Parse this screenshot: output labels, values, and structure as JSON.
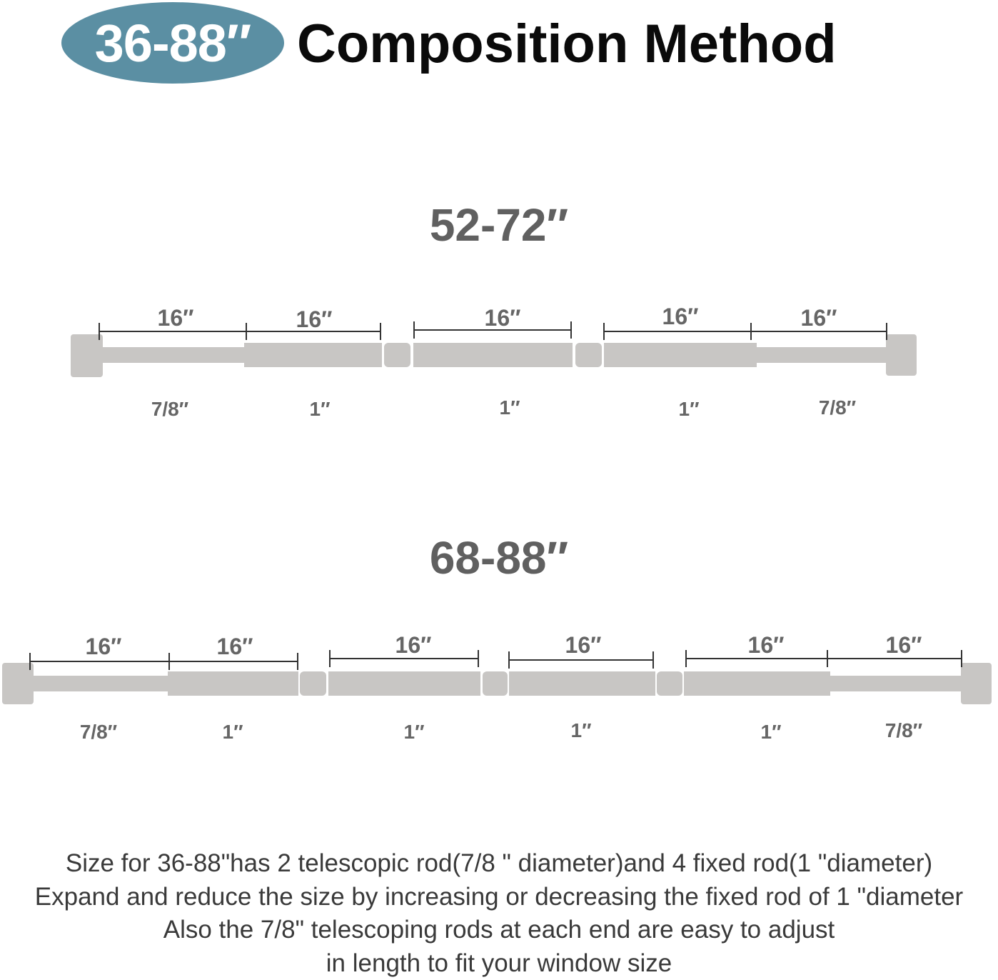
{
  "header": {
    "badge": "36-88″",
    "title": "Composition Method"
  },
  "diagram_1": {
    "label": "52-72″",
    "lengths": [
      "16″",
      "16″",
      "16″",
      "16″",
      "16″"
    ],
    "diameters": [
      "7/8″",
      "1″",
      "1″",
      "1″",
      "7/8″"
    ]
  },
  "diagram_2": {
    "label": "68-88″",
    "lengths": [
      "16″",
      "16″",
      "16″",
      "16″",
      "16″",
      "16″"
    ],
    "diameters": [
      "7/8″",
      "1″",
      "1″",
      "1″",
      "1″",
      "7/8″"
    ]
  },
  "description": {
    "line1": "Size for 36-88\"has 2 telescopic rod(7/8 \" diameter)and 4 fixed rod(1 \"diameter)",
    "line2": "Expand and reduce the size by increasing or decreasing the fixed rod of 1 \"diameter",
    "line3": "Also the 7/8\" telescoping rods at each end are easy to adjust",
    "line4": "in length to fit your window size"
  },
  "colors": {
    "badge": "#5b8fa3",
    "rod": "#c8c6c4",
    "label": "#606060"
  }
}
